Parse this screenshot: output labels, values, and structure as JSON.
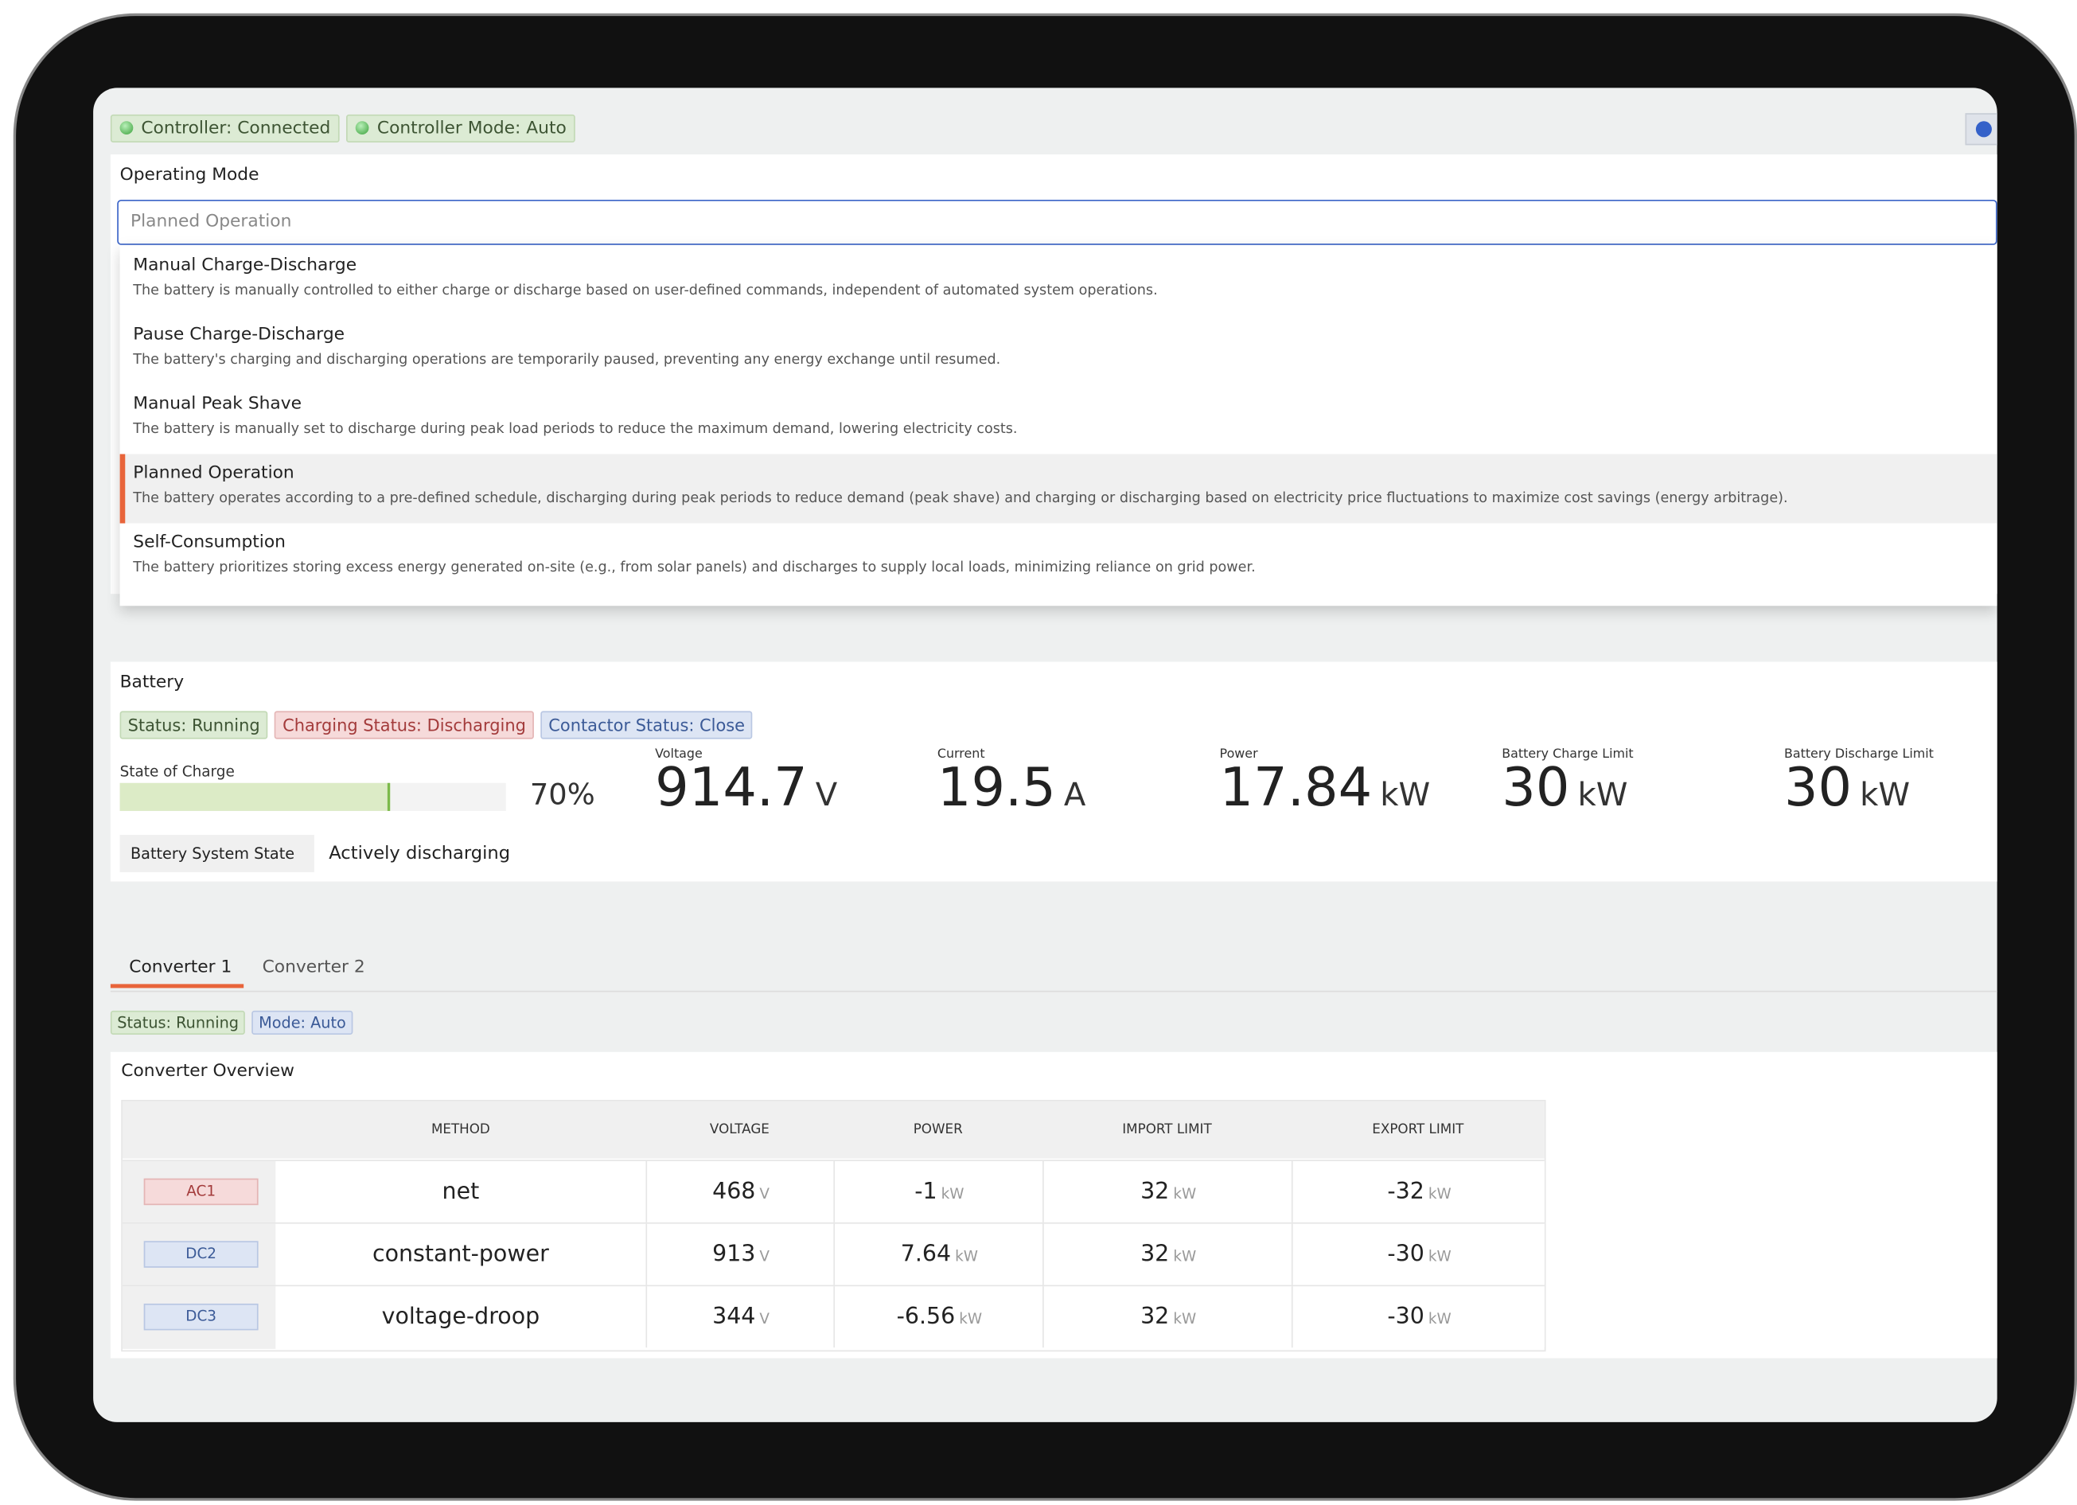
{
  "header": {
    "badges": [
      "Controller: Connected",
      "Controller Mode: Auto"
    ]
  },
  "operating_mode": {
    "label": "Operating Mode",
    "placeholder": "Planned Operation",
    "selected_index": 3,
    "options": [
      {
        "title": "Manual Charge-Discharge",
        "description": "The battery is manually controlled to either charge or discharge based on user-defined commands, independent of automated system operations."
      },
      {
        "title": "Pause Charge-Discharge",
        "description": "The battery's charging and discharging operations are temporarily paused, preventing any energy exchange until resumed."
      },
      {
        "title": "Manual Peak Shave",
        "description": "The battery is manually set to discharge during peak load periods to reduce the maximum demand, lowering electricity costs."
      },
      {
        "title": "Planned Operation",
        "description": "The battery operates according to a pre-defined schedule, discharging during peak periods to reduce demand (peak shave) and charging or discharging based on electricity price fluctuations to maximize cost savings (energy arbitrage)."
      },
      {
        "title": "Self-Consumption",
        "description": "The battery prioritizes storing excess energy generated on-site (e.g., from solar panels) and discharges to supply local loads, minimizing reliance on grid power."
      }
    ]
  },
  "battery": {
    "title": "Battery",
    "badges": [
      "Status: Running",
      "Charging Status: Discharging",
      "Contactor Status: Close"
    ],
    "state_of_charge": {
      "label": "State of Charge",
      "value": 70,
      "display": "70%"
    },
    "metrics": [
      {
        "label": "Voltage",
        "value": "914.7",
        "unit": "V"
      },
      {
        "label": "Current",
        "value": "19.5",
        "unit": "A"
      },
      {
        "label": "Power",
        "value": "17.84",
        "unit": "kW"
      },
      {
        "label": "Battery Charge Limit",
        "value": "30",
        "unit": "kW"
      },
      {
        "label": "Battery Discharge Limit",
        "value": "30",
        "unit": "kW"
      }
    ],
    "system_state": {
      "label": "Battery System State",
      "value": "Actively discharging"
    }
  },
  "converters": {
    "tabs": [
      "Converter 1",
      "Converter 2"
    ],
    "badges": [
      "Status: Running",
      "Mode: Auto"
    ],
    "overview_title": "Converter Overview",
    "columns": [
      "METHOD",
      "VOLTAGE",
      "POWER",
      "IMPORT LIMIT",
      "EXPORT LIMIT"
    ],
    "rows": [
      {
        "id": "AC1",
        "method": "net",
        "cells": [
          [
            "468",
            "V"
          ],
          [
            "-1",
            "kW"
          ],
          [
            "32",
            "kW"
          ],
          [
            "-32",
            "kW"
          ]
        ]
      },
      {
        "id": "DC2",
        "method": "constant-power",
        "cells": [
          [
            "913",
            "V"
          ],
          [
            "7.64",
            "kW"
          ],
          [
            "32",
            "kW"
          ],
          [
            "-30",
            "kW"
          ]
        ]
      },
      {
        "id": "DC3",
        "method": "voltage-droop",
        "cells": [
          [
            "344",
            "V"
          ],
          [
            "-6.56",
            "kW"
          ],
          [
            "32",
            "kW"
          ],
          [
            "-30",
            "kW"
          ]
        ]
      }
    ]
  }
}
